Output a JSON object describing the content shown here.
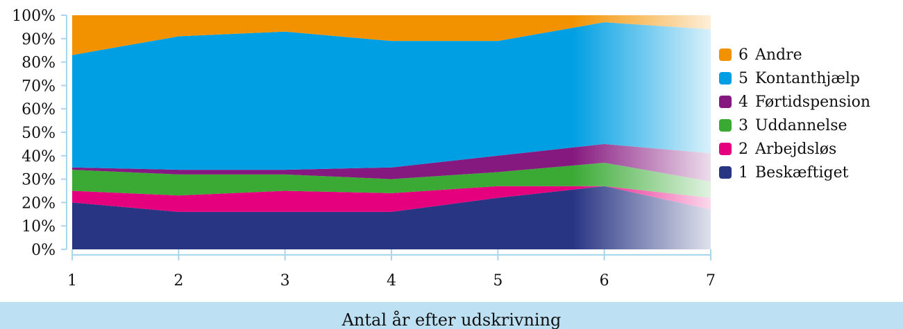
{
  "chart_data": {
    "type": "area",
    "stacked": true,
    "normalized_percent": true,
    "x": [
      1,
      2,
      3,
      4,
      5,
      6,
      7
    ],
    "xlabel": "Antal år efter udskrivning",
    "ylabel": "",
    "ylim": [
      0,
      100
    ],
    "yticks": [
      "0%",
      "10%",
      "20%",
      "30%",
      "40%",
      "50%",
      "60%",
      "70%",
      "80%",
      "90%",
      "100%"
    ],
    "xticks": [
      "1",
      "2",
      "3",
      "4",
      "5",
      "6",
      "7"
    ],
    "legend_position": "right",
    "fade_from_x": 5.7,
    "series": [
      {
        "name": "Beskæftiget",
        "number": "1",
        "color": "#283583",
        "values": [
          20,
          16,
          16,
          16,
          22,
          27,
          17
        ]
      },
      {
        "name": "Arbejdsløs",
        "number": "2",
        "color": "#e5007d",
        "values": [
          5,
          7,
          9,
          8,
          5,
          0,
          5
        ]
      },
      {
        "name": "Uddannelse",
        "number": "3",
        "color": "#3aaa35",
        "values": [
          9,
          9,
          7,
          6,
          6,
          10,
          7
        ]
      },
      {
        "name": "Førtidspension",
        "number": "4",
        "color": "#86197f",
        "values": [
          1,
          2,
          2,
          5,
          7,
          8,
          12
        ]
      },
      {
        "name": "Kontanthjælp",
        "number": "5",
        "color": "#009fe3",
        "values": [
          48,
          57,
          59,
          54,
          49,
          52,
          53
        ]
      },
      {
        "name": "Andre",
        "number": "6",
        "color": "#f39200",
        "values": [
          17,
          9,
          7,
          11,
          11,
          3,
          6
        ]
      }
    ]
  }
}
